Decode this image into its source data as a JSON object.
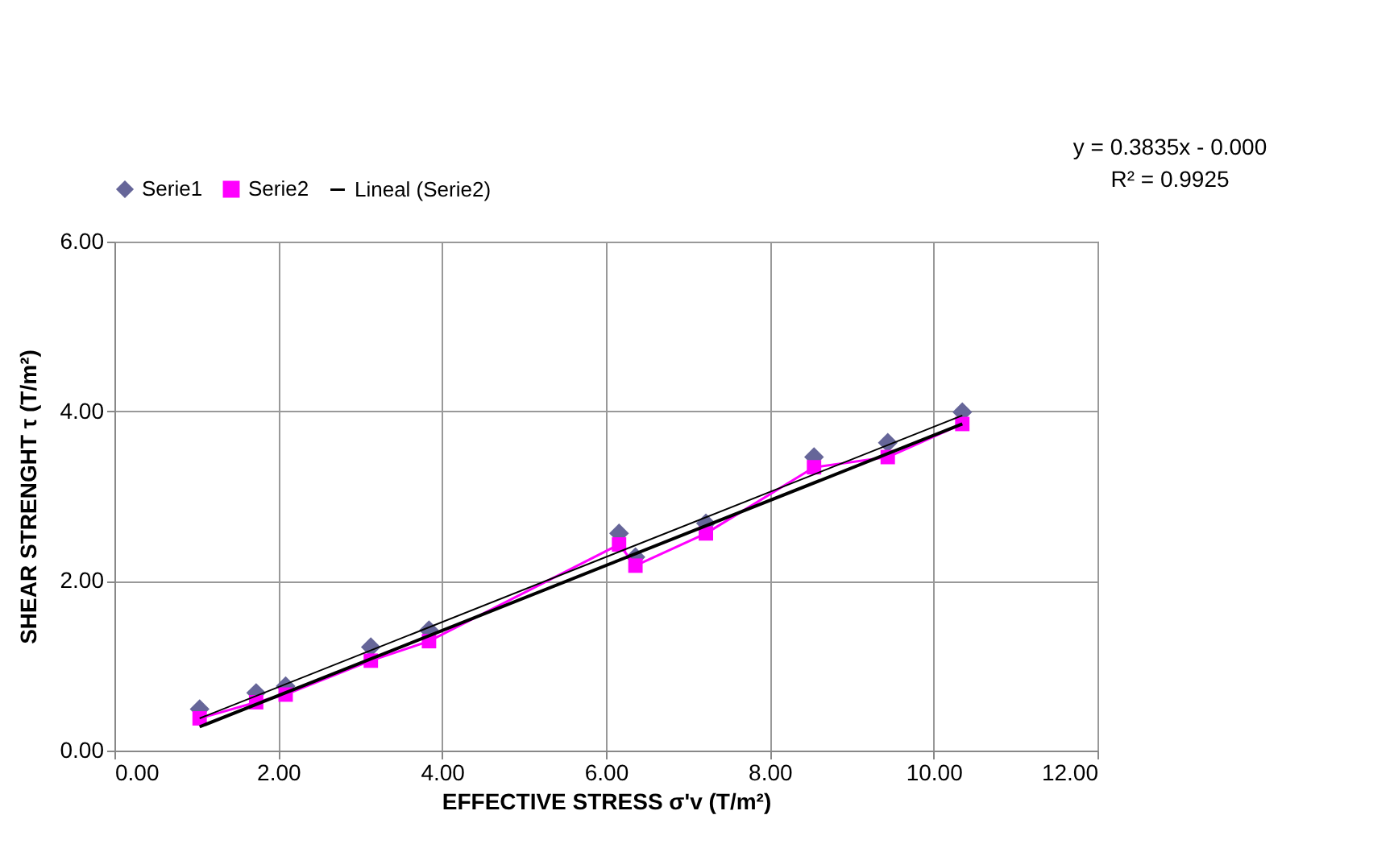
{
  "chart_data": {
    "type": "scatter",
    "xlabel": "EFFECTIVE STRESS σ'v (T/m²)",
    "ylabel": "SHEAR STRENGHT τ (T/m²)",
    "annotations": [
      "y = 0.3835x - 0.000",
      "R² = 0.9925"
    ],
    "xlim": [
      0,
      12
    ],
    "ylim": [
      0,
      6
    ],
    "xticks": [
      {
        "value": 0,
        "label": "0.00"
      },
      {
        "value": 2,
        "label": "2.00"
      },
      {
        "value": 4,
        "label": "4.00"
      },
      {
        "value": 6,
        "label": "6.00"
      },
      {
        "value": 8,
        "label": "8.00"
      },
      {
        "value": 10,
        "label": "10.00"
      },
      {
        "value": 12,
        "label": "12.00"
      }
    ],
    "yticks": [
      {
        "value": 0,
        "label": "0.00"
      },
      {
        "value": 2,
        "label": "2.00"
      },
      {
        "value": 4,
        "label": "4.00"
      },
      {
        "value": 6,
        "label": "6.00"
      }
    ],
    "grid": true,
    "legend": "top",
    "series": [
      {
        "name": "Serie1",
        "marker": "diamond",
        "color": "#666699",
        "x": [
          1.04,
          1.73,
          2.09,
          3.13,
          3.84,
          6.16,
          6.36,
          7.22,
          8.54,
          9.44,
          10.35
        ],
        "values": [
          0.49,
          0.68,
          0.76,
          1.22,
          1.42,
          2.56,
          2.28,
          2.68,
          3.46,
          3.63,
          3.99
        ]
      },
      {
        "name": "Serie2",
        "type": "line",
        "marker": "square",
        "color": "#ff00ff",
        "x": [
          1.04,
          1.73,
          2.09,
          3.13,
          3.84,
          6.16,
          6.36,
          7.22,
          8.54,
          9.44,
          10.35
        ],
        "values": [
          0.38,
          0.57,
          0.66,
          1.06,
          1.29,
          2.43,
          2.18,
          2.56,
          3.34,
          3.46,
          3.85
        ]
      },
      {
        "name": "Lineal (Serie2)",
        "type": "line",
        "color": "#000000",
        "x": [
          1.04,
          10.35
        ],
        "values": [
          0.28,
          3.85
        ]
      },
      {
        "type": "line",
        "color": "#000000",
        "x": [
          1.04,
          10.35
        ],
        "values": [
          0.38,
          3.95
        ]
      }
    ]
  }
}
